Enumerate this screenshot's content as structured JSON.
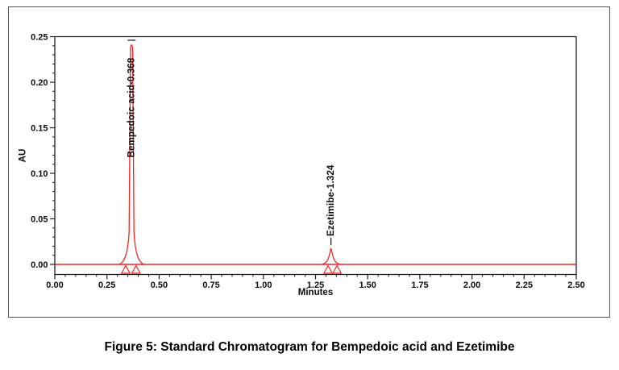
{
  "figure": {
    "caption": "Figure 5: Standard Chromatogram for Bempedoic acid and Ezetimibe"
  },
  "chart_data": {
    "type": "line",
    "title": "Standard Chromatogram for Bempedoic acid and Ezetimibe",
    "xlabel": "Minutes",
    "ylabel": "AU",
    "xlim": [
      0.0,
      2.5
    ],
    "ylim": [
      -0.011,
      0.25
    ],
    "x_ticks": [
      "0.00",
      "0.25",
      "0.50",
      "0.75",
      "1.00",
      "1.25",
      "1.50",
      "1.75",
      "2.00",
      "2.25",
      "2.50"
    ],
    "y_ticks": [
      "0.00",
      "0.05",
      "0.10",
      "0.15",
      "0.20",
      "0.25"
    ],
    "x_minor_step": 0.05,
    "y_minor_step": 0.01,
    "grid": false,
    "legend": null,
    "baseline_au": 0.0,
    "peaks": [
      {
        "name": "Bempedoic acid",
        "label": "Bempedoic acid-0.368",
        "retention_time_min": 0.368,
        "height_au": 0.243,
        "integration_marks_min": [
          0.34,
          0.389
        ]
      },
      {
        "name": "Ezetimibe",
        "label": "Ezetimibe-1.324",
        "retention_time_min": 1.324,
        "height_au": 0.0195,
        "integration_marks_min": [
          1.31,
          1.353
        ]
      }
    ],
    "colors": {
      "trace": "#f42525",
      "axis": "#1f1f1f",
      "frame": "#555555",
      "text": "#0d0d0d"
    }
  }
}
